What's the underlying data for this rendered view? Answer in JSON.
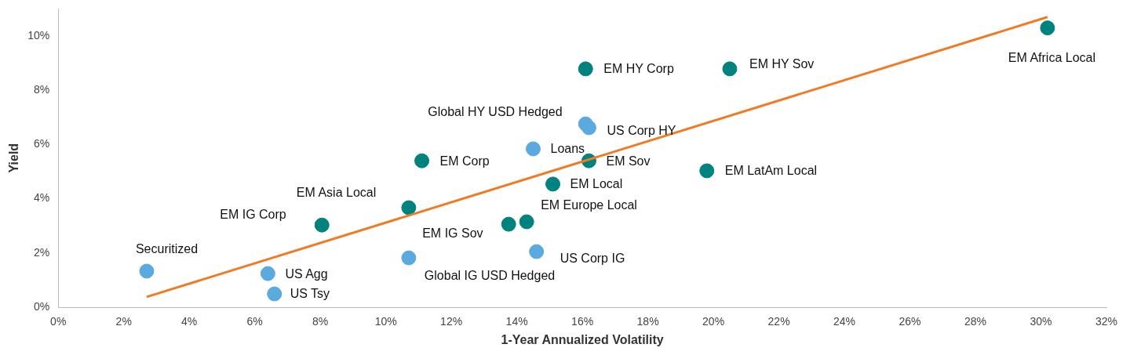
{
  "chart_data": {
    "type": "scatter",
    "xlabel": "1-Year Annualized Volatility",
    "ylabel": "Yield",
    "marker": "circle",
    "grid": false,
    "legend": false,
    "xlim": [
      0,
      32
    ],
    "ylim": [
      0,
      11
    ],
    "xticks": [
      {
        "value": 0,
        "label": "0%"
      },
      {
        "value": 2,
        "label": "2%"
      },
      {
        "value": 4,
        "label": "4%"
      },
      {
        "value": 6,
        "label": "6%"
      },
      {
        "value": 8,
        "label": "8%"
      },
      {
        "value": 10,
        "label": "10%"
      },
      {
        "value": 12,
        "label": "12%"
      },
      {
        "value": 14,
        "label": "14%"
      },
      {
        "value": 16,
        "label": "16%"
      },
      {
        "value": 18,
        "label": "18%"
      },
      {
        "value": 20,
        "label": "20%"
      },
      {
        "value": 22,
        "label": "22%"
      },
      {
        "value": 24,
        "label": "24%"
      },
      {
        "value": 26,
        "label": "26%"
      },
      {
        "value": 28,
        "label": "28%"
      },
      {
        "value": 30,
        "label": "30%"
      },
      {
        "value": 32,
        "label": "32%"
      }
    ],
    "yticks": [
      {
        "value": 0,
        "label": "0%"
      },
      {
        "value": 2,
        "label": "2%"
      },
      {
        "value": 4,
        "label": "4%"
      },
      {
        "value": 6,
        "label": "6%"
      },
      {
        "value": 8,
        "label": "8%"
      },
      {
        "value": 10,
        "label": "10%"
      }
    ],
    "series": [
      {
        "color": "#5aaae0",
        "x": [
          2.7,
          6.4,
          6.6,
          10.7,
          14.5,
          14.6,
          16.1,
          16.2
        ],
        "values": [
          1.33,
          1.24,
          0.49,
          1.82,
          5.84,
          2.05,
          6.76,
          6.62
        ]
      },
      {
        "color": "#00827f",
        "x": [
          8.05,
          10.7,
          11.1,
          13.75,
          14.3,
          15.1,
          16.1,
          16.2,
          19.8,
          20.5,
          30.2
        ],
        "values": [
          3.03,
          3.67,
          5.4,
          3.06,
          3.15,
          4.54,
          8.79,
          5.4,
          5.03,
          8.79,
          10.3
        ]
      },
      {
        "type": "line",
        "color": "#f07b24",
        "marker": "none",
        "line_style": "solid",
        "x": [
          2.7,
          30.2
        ],
        "values": [
          0.38,
          10.7
        ]
      }
    ],
    "annotations": [
      {
        "text": "Securitized",
        "x": 2.7,
        "y": 1.33
      },
      {
        "text": "US Agg",
        "x": 6.4,
        "y": 1.24
      },
      {
        "text": "US Tsy",
        "x": 6.6,
        "y": 0.49
      },
      {
        "text": "Global IG USD Hedged",
        "x": 10.7,
        "y": 1.82
      },
      {
        "text": "Loans",
        "x": 14.5,
        "y": 5.84
      },
      {
        "text": "US Corp IG",
        "x": 14.6,
        "y": 2.05
      },
      {
        "text": "Global HY USD Hedged",
        "x": 16.1,
        "y": 6.76
      },
      {
        "text": "US Corp HY",
        "x": 16.2,
        "y": 6.62
      },
      {
        "text": "EM IG Corp",
        "x": 8.05,
        "y": 3.03
      },
      {
        "text": "EM Asia Local",
        "x": 10.7,
        "y": 3.67
      },
      {
        "text": "EM Corp",
        "x": 11.1,
        "y": 5.4
      },
      {
        "text": "EM IG Sov",
        "x": 13.75,
        "y": 3.06
      },
      {
        "text": "EM Europe Local",
        "x": 14.3,
        "y": 3.15
      },
      {
        "text": "EM Local",
        "x": 15.1,
        "y": 4.54
      },
      {
        "text": "EM HY Corp",
        "x": 16.1,
        "y": 8.79
      },
      {
        "text": "EM Sov",
        "x": 16.2,
        "y": 5.4
      },
      {
        "text": "EM LatAm Local",
        "x": 19.8,
        "y": 5.03
      },
      {
        "text": "EM HY Sov",
        "x": 20.5,
        "y": 8.79
      },
      {
        "text": "EM Africa Local",
        "x": 30.2,
        "y": 10.3
      }
    ]
  }
}
